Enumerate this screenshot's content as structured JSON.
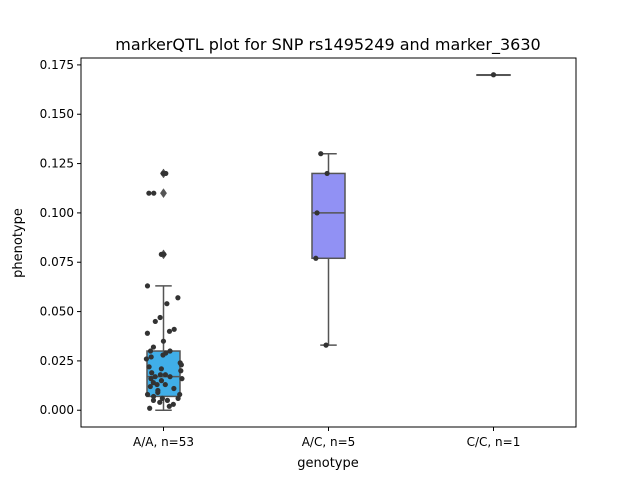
{
  "chart_data": {
    "type": "box",
    "title": "markerQTL plot for SNP rs1495249 and marker_3630",
    "xlabel": "genotype",
    "ylabel": "phenotype",
    "ylim": [
      -0.0085,
      0.1785
    ],
    "yticks": [
      0.0,
      0.025,
      0.05,
      0.075,
      0.1,
      0.125,
      0.15,
      0.175
    ],
    "ytick_labels": [
      "0.000",
      "0.025",
      "0.050",
      "0.075",
      "0.100",
      "0.125",
      "0.150",
      "0.175"
    ],
    "grid": false,
    "categories": [
      "A/A, n=53",
      "A/C, n=5",
      "C/C, n=1"
    ],
    "boxes": [
      {
        "category": "A/A, n=53",
        "color": "#40aee8",
        "q1": 0.007,
        "median": 0.017,
        "q3": 0.03,
        "whisker_low": 0.0,
        "whisker_high": 0.063,
        "outliers": [
          0.079,
          0.11,
          0.12
        ]
      },
      {
        "category": "A/C, n=5",
        "color": "#9191f4",
        "q1": 0.077,
        "median": 0.1,
        "q3": 0.12,
        "whisker_low": 0.033,
        "whisker_high": 0.13,
        "outliers": []
      },
      {
        "category": "C/C, n=1",
        "color": "#d0a0f0",
        "q1": 0.17,
        "median": 0.17,
        "q3": 0.17,
        "whisker_low": 0.17,
        "whisker_high": 0.17,
        "outliers": []
      }
    ],
    "points": [
      {
        "group": 0,
        "values": [
          0.12,
          0.12,
          0.11,
          0.11,
          0.079,
          0.079,
          0.063,
          0.057,
          0.054,
          0.047,
          0.045,
          0.041,
          0.04,
          0.039,
          0.035,
          0.032,
          0.03,
          0.03,
          0.029,
          0.028,
          0.027,
          0.026,
          0.024,
          0.023,
          0.022,
          0.021,
          0.02,
          0.019,
          0.018,
          0.018,
          0.017,
          0.017,
          0.016,
          0.016,
          0.015,
          0.014,
          0.013,
          0.013,
          0.012,
          0.011,
          0.01,
          0.009,
          0.008,
          0.008,
          0.007,
          0.006,
          0.006,
          0.005,
          0.005,
          0.004,
          0.003,
          0.002,
          0.001
        ]
      },
      {
        "group": 1,
        "values": [
          0.13,
          0.12,
          0.1,
          0.077,
          0.033
        ]
      },
      {
        "group": 2,
        "values": [
          0.17
        ]
      }
    ]
  }
}
